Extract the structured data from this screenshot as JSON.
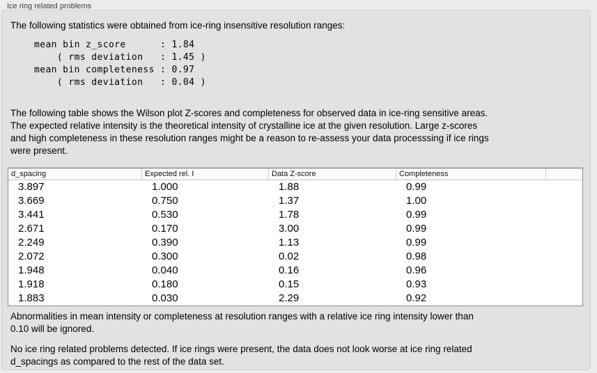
{
  "section": {
    "title": "Ice ring related problems"
  },
  "panel": {
    "intro": "The following statistics were obtained from ice-ring insensitive resolution ranges:",
    "stats_block": "mean bin z_score      : 1.84\n    ( rms deviation   : 1.45 )\nmean bin completeness : 0.97\n    ( rms deviation   : 0.04 )",
    "stats": {
      "mean_bin_z_score": "1.84",
      "z_score_rms_deviation": "1.45",
      "mean_bin_completeness": "0.97",
      "completeness_rms_deviation": "0.04"
    },
    "table_note": "The following table shows the Wilson plot Z-scores and completeness for observed data in ice-ring sensitive areas.\nThe expected relative intensity is the theoretical intensity of crystalline ice at the given resolution. Large z-scores\nand high completeness in these resolution ranges might be a reason to re-assess your data processsing if ice rings\nwere present.",
    "table": {
      "columns": [
        "d_spacing",
        "Expected rel. I",
        "Data Z-score",
        "Completeness"
      ],
      "rows": [
        [
          "3.897",
          "1.000",
          "1.88",
          "0.99"
        ],
        [
          "3.669",
          "0.750",
          "1.37",
          "1.00"
        ],
        [
          "3.441",
          "0.530",
          "1.78",
          "0.99"
        ],
        [
          "2.671",
          "0.170",
          "3.00",
          "0.99"
        ],
        [
          "2.249",
          "0.390",
          "1.13",
          "0.99"
        ],
        [
          "2.072",
          "0.300",
          "0.02",
          "0.98"
        ],
        [
          "1.948",
          "0.040",
          "0.16",
          "0.96"
        ],
        [
          "1.918",
          "0.180",
          "0.15",
          "0.93"
        ],
        [
          "1.883",
          "0.030",
          "2.29",
          "0.92"
        ]
      ]
    },
    "ignore_note": "Abnormalities in mean intensity or completeness at resolution ranges with a relative ice ring intensity lower than\n0.10 will be ignored.",
    "conclusion": "No ice ring related problems detected. If ice rings were present, the data does not look worse at ice ring related\nd_spacings as compared to the rest of the data set."
  },
  "colors": {
    "page_bg": "#ececec",
    "panel_bg": "#e2e2e2",
    "panel_border": "#d0d0d0",
    "table_bg": "#ffffff",
    "table_border": "#8c8c8c",
    "table_header_bg": "#fafafa"
  }
}
